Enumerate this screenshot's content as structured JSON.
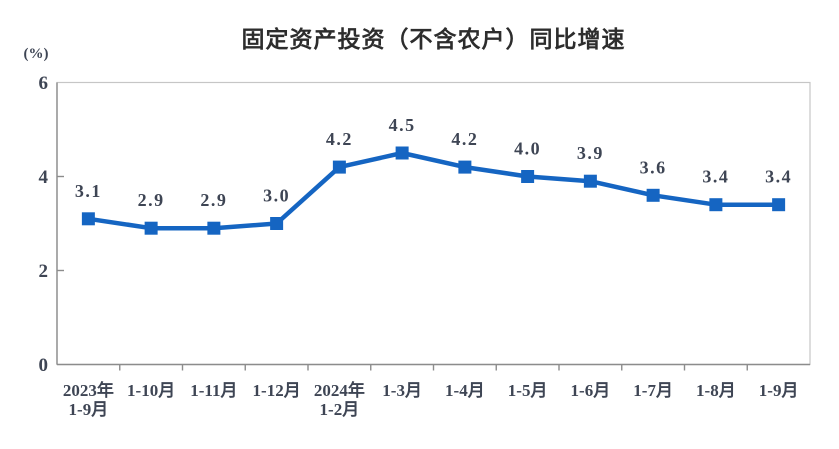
{
  "chart_data": {
    "type": "line",
    "title": "固定资产投资（不含农户）同比增速",
    "unit_label": "(%)",
    "categories": [
      "2023年\n1-9月",
      "1-10月",
      "1-11月",
      "1-12月",
      "2024年\n1-2月",
      "1-3月",
      "1-4月",
      "1-5月",
      "1-6月",
      "1-7月",
      "1-8月",
      "1-9月"
    ],
    "values": [
      3.1,
      2.9,
      2.9,
      3.0,
      4.2,
      4.5,
      4.2,
      4.0,
      3.9,
      3.6,
      3.4,
      3.4
    ],
    "data_labels": [
      "3.1",
      "2.9",
      "2.9",
      "3.0",
      "4.2",
      "4.5",
      "4.2",
      "4.0",
      "3.9",
      "3.6",
      "3.4",
      "3.4"
    ],
    "ylim": [
      0,
      6
    ],
    "yticks": [
      0,
      2,
      4,
      6
    ],
    "grid": false,
    "legend_position": "none",
    "marker": "square",
    "colors": {
      "line": "#1565c2",
      "marker": "#1565c2",
      "label_text": "#3e4554",
      "axis": "#8c8c8c",
      "frame": "#c6c6c6",
      "title": "#2d2d2d"
    }
  }
}
